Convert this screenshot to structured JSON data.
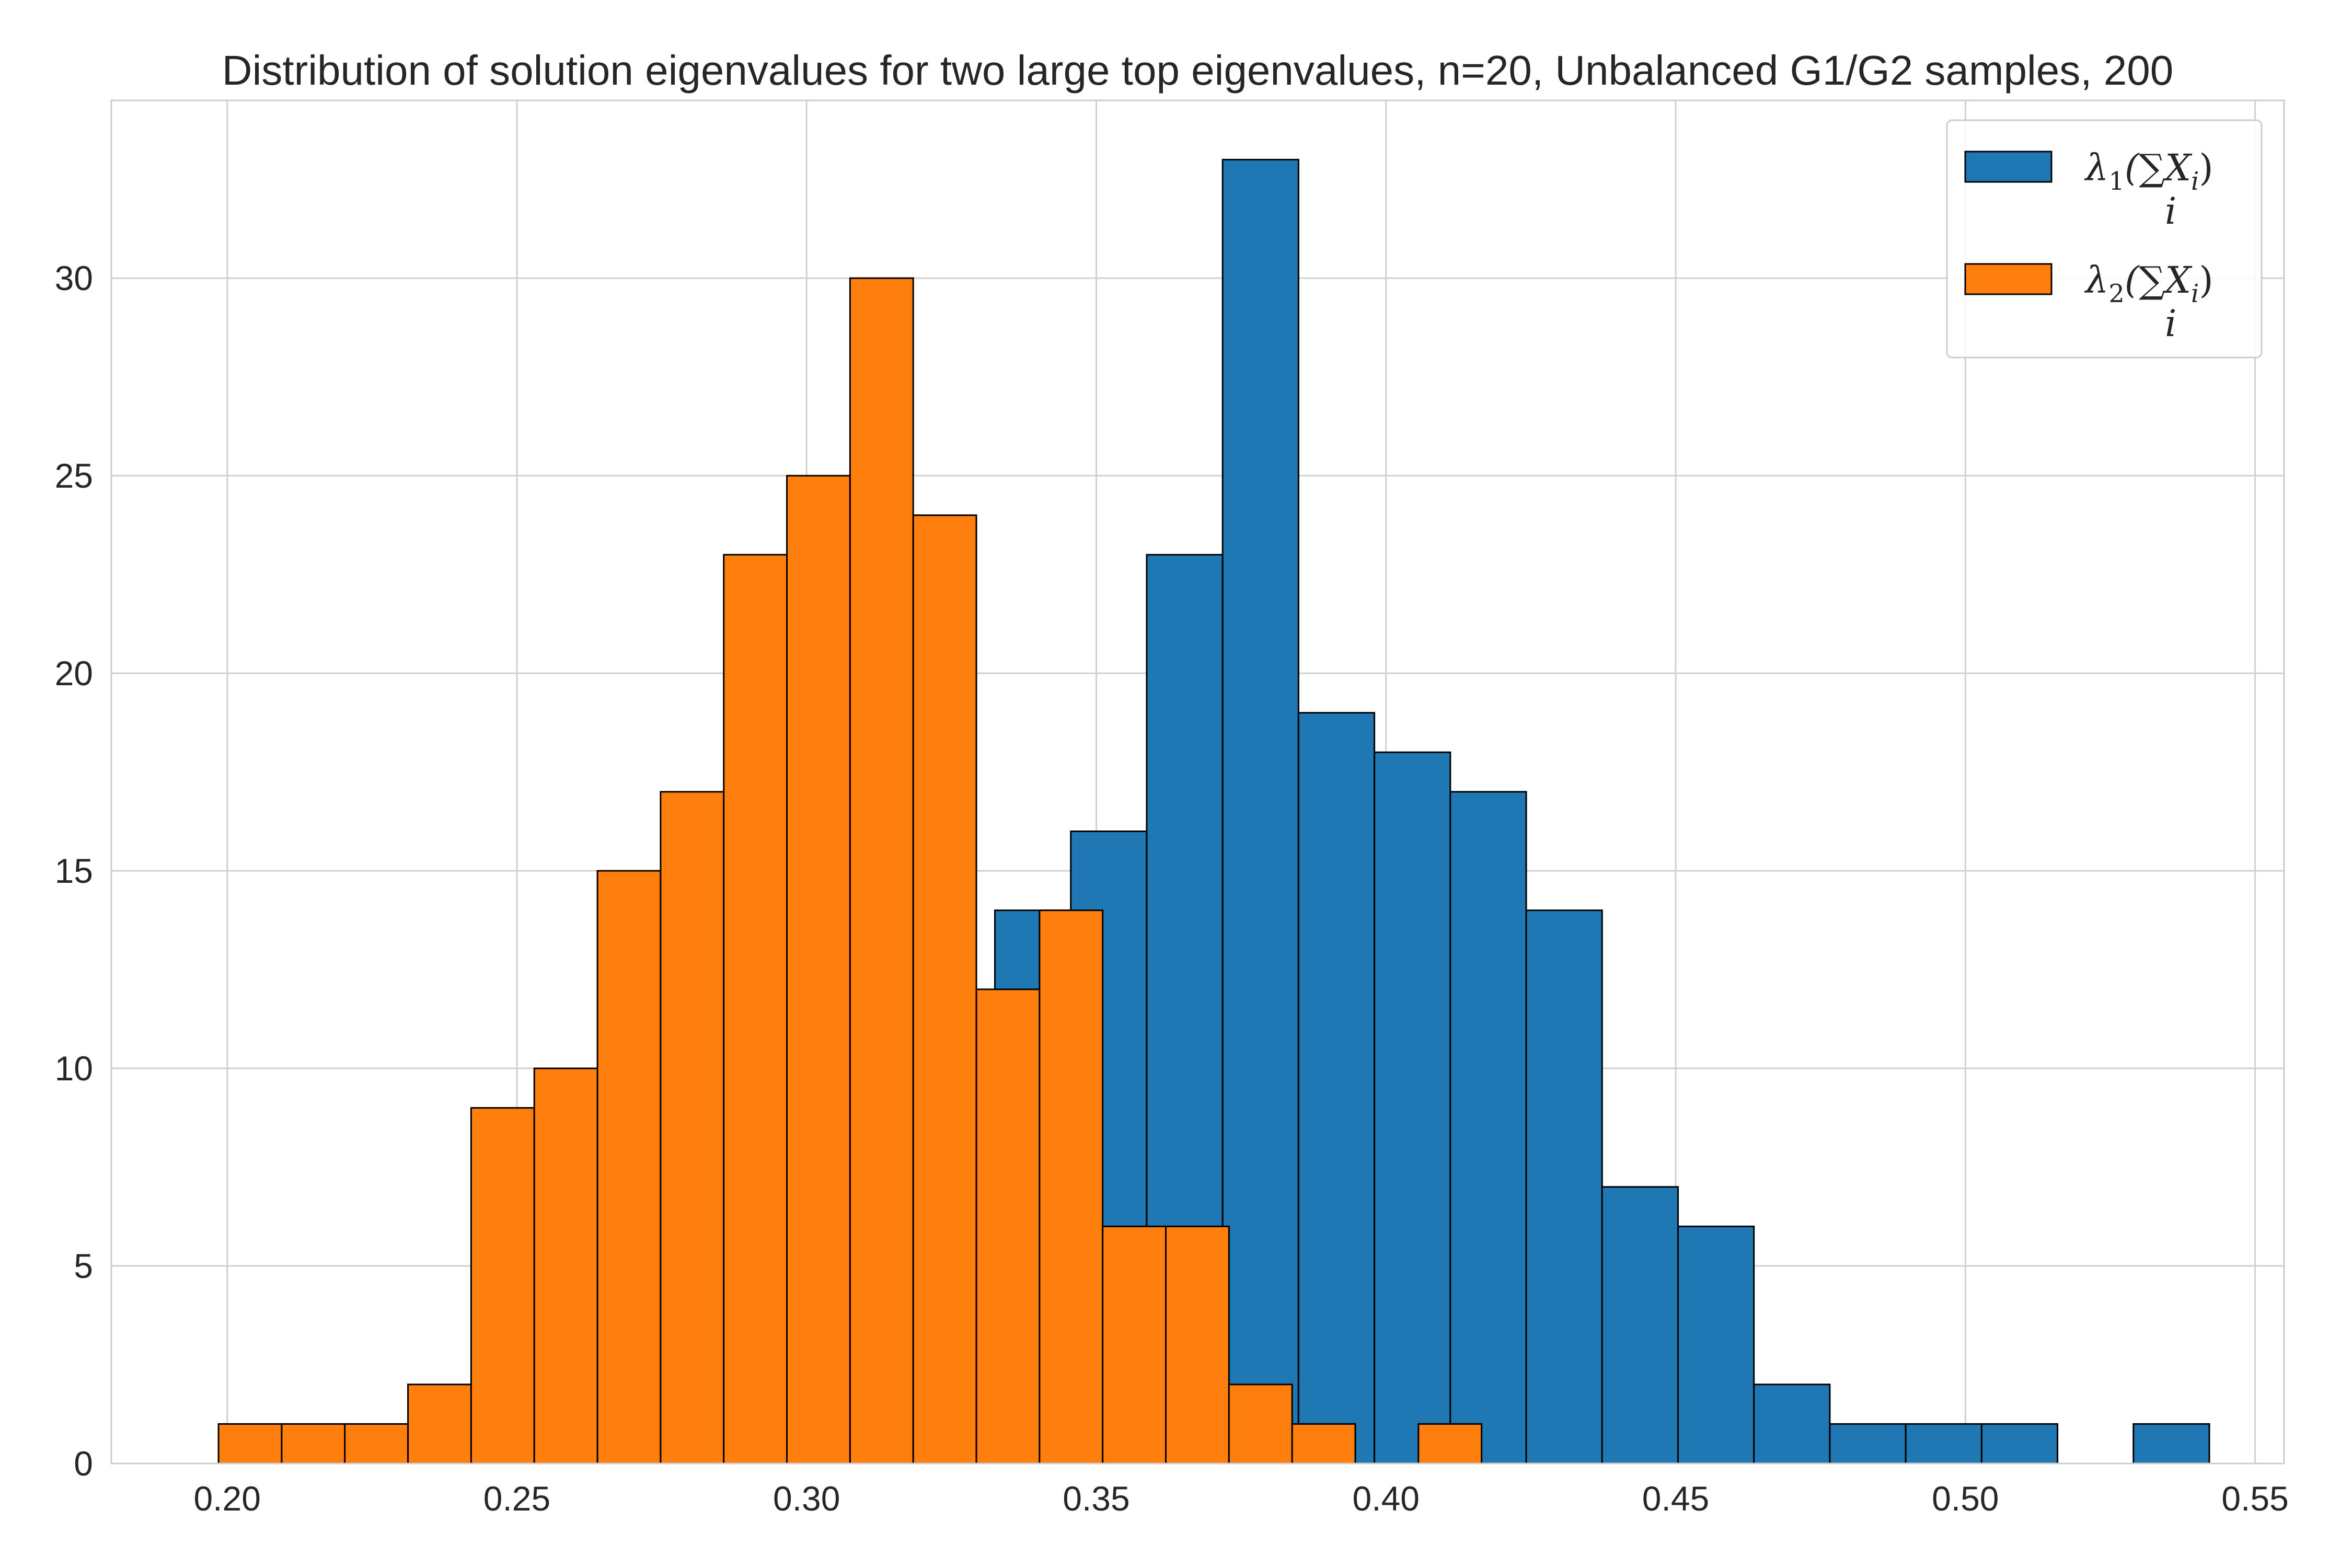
{
  "chart_data": {
    "type": "bar",
    "title": "Distribution of solution eigenvalues for two large top eigenvalues, n=20, Unbalanced G1/G2 samples, 200",
    "xlabel": "",
    "ylabel": "",
    "xlim": [
      0.18,
      0.555
    ],
    "ylim": [
      0,
      34.5
    ],
    "grid": true,
    "legend_position": "top-right",
    "xticks": [
      "0.20",
      "0.25",
      "0.30",
      "0.35",
      "0.40",
      "0.45",
      "0.50",
      "0.55"
    ],
    "xtick_values": [
      0.2,
      0.25,
      0.3,
      0.35,
      0.4,
      0.45,
      0.5,
      0.55
    ],
    "yticks": [
      "0",
      "5",
      "10",
      "15",
      "20",
      "25",
      "30"
    ],
    "ytick_values": [
      0,
      5,
      10,
      15,
      20,
      25,
      30
    ],
    "series": [
      {
        "name": "λ1(∑i Xi)",
        "legend_main": "λ",
        "legend_sub": "1",
        "legend_expr": "(∑X",
        "legend_expr_sub": "i",
        "legend_close": ")",
        "legend_under": "i",
        "color": "#1f77b4",
        "bins": [
          {
            "x0": 0.3325,
            "x1": 0.3456,
            "count": 14
          },
          {
            "x0": 0.3456,
            "x1": 0.3587,
            "count": 16
          },
          {
            "x0": 0.3587,
            "x1": 0.3718,
            "count": 23
          },
          {
            "x0": 0.3718,
            "x1": 0.3849,
            "count": 33
          },
          {
            "x0": 0.3849,
            "x1": 0.398,
            "count": 19
          },
          {
            "x0": 0.398,
            "x1": 0.4111,
            "count": 18
          },
          {
            "x0": 0.4111,
            "x1": 0.4242,
            "count": 17
          },
          {
            "x0": 0.4242,
            "x1": 0.4373,
            "count": 14
          },
          {
            "x0": 0.4373,
            "x1": 0.4504,
            "count": 7
          },
          {
            "x0": 0.4504,
            "x1": 0.4635,
            "count": 6
          },
          {
            "x0": 0.4635,
            "x1": 0.4766,
            "count": 2
          },
          {
            "x0": 0.4766,
            "x1": 0.4897,
            "count": 1
          },
          {
            "x0": 0.4897,
            "x1": 0.5028,
            "count": 1
          },
          {
            "x0": 0.5028,
            "x1": 0.5159,
            "count": 1
          },
          {
            "x0": 0.5159,
            "x1": 0.529,
            "count": 0
          },
          {
            "x0": 0.529,
            "x1": 0.5421,
            "count": 1
          }
        ]
      },
      {
        "name": "λ2(∑i Xi)",
        "legend_main": "λ",
        "legend_sub": "2",
        "legend_expr": "(∑X",
        "legend_expr_sub": "i",
        "legend_close": ")",
        "legend_under": "i",
        "color": "#ff7f0e",
        "bins": [
          {
            "x0": 0.1985,
            "x1": 0.2094,
            "count": 1
          },
          {
            "x0": 0.2094,
            "x1": 0.2203,
            "count": 1
          },
          {
            "x0": 0.2203,
            "x1": 0.2312,
            "count": 1
          },
          {
            "x0": 0.2312,
            "x1": 0.2421,
            "count": 2
          },
          {
            "x0": 0.2421,
            "x1": 0.253,
            "count": 9
          },
          {
            "x0": 0.253,
            "x1": 0.2639,
            "count": 10
          },
          {
            "x0": 0.2639,
            "x1": 0.2748,
            "count": 15
          },
          {
            "x0": 0.2748,
            "x1": 0.2857,
            "count": 17
          },
          {
            "x0": 0.2857,
            "x1": 0.2966,
            "count": 23
          },
          {
            "x0": 0.2966,
            "x1": 0.3075,
            "count": 25
          },
          {
            "x0": 0.3075,
            "x1": 0.3184,
            "count": 30
          },
          {
            "x0": 0.3184,
            "x1": 0.3293,
            "count": 24
          },
          {
            "x0": 0.3293,
            "x1": 0.3402,
            "count": 12
          },
          {
            "x0": 0.3402,
            "x1": 0.3511,
            "count": 14
          },
          {
            "x0": 0.3511,
            "x1": 0.362,
            "count": 6
          },
          {
            "x0": 0.362,
            "x1": 0.3729,
            "count": 6
          },
          {
            "x0": 0.3729,
            "x1": 0.3838,
            "count": 2
          },
          {
            "x0": 0.3838,
            "x1": 0.3947,
            "count": 1
          },
          {
            "x0": 0.3947,
            "x1": 0.4056,
            "count": 0
          },
          {
            "x0": 0.4056,
            "x1": 0.4165,
            "count": 1
          }
        ]
      }
    ]
  }
}
